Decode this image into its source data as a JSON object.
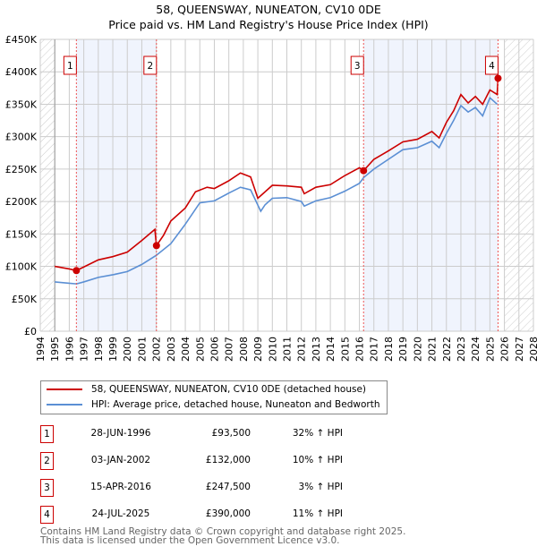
{
  "title": "58, QUEENSWAY, NUNEATON, CV10 0DE",
  "subtitle": "Price paid vs. HM Land Registry's House Price Index (HPI)",
  "chart_data": {
    "type": "line",
    "title": "58, QUEENSWAY, NUNEATON, CV10 0DE",
    "subtitle": "Price paid vs. HM Land Registry's House Price Index (HPI)",
    "xlim": [
      1994,
      2028
    ],
    "ylim": [
      0,
      450
    ],
    "x_ticks": [
      1994,
      1995,
      1996,
      1997,
      1998,
      1999,
      2000,
      2001,
      2002,
      2003,
      2004,
      2005,
      2006,
      2007,
      2008,
      2009,
      2010,
      2011,
      2012,
      2013,
      2014,
      2015,
      2016,
      2017,
      2018,
      2019,
      2020,
      2021,
      2022,
      2023,
      2024,
      2025,
      2026,
      2027,
      2028
    ],
    "y_ticks": [
      {
        "v": 0,
        "label": "£0"
      },
      {
        "v": 50,
        "label": "£50K"
      },
      {
        "v": 100,
        "label": "£100K"
      },
      {
        "v": 150,
        "label": "£150K"
      },
      {
        "v": 200,
        "label": "£200K"
      },
      {
        "v": 250,
        "label": "£250K"
      },
      {
        "v": 300,
        "label": "£300K"
      },
      {
        "v": 350,
        "label": "£350K"
      },
      {
        "v": 400,
        "label": "£400K"
      },
      {
        "v": 450,
        "label": "£450K"
      }
    ],
    "grid": true,
    "series": [
      {
        "name": "58, QUEENSWAY, NUNEATON, CV10 0DE (detached house)",
        "color": "#cc0000",
        "x": [
          1995,
          1996,
          1996.49,
          1997,
          1998,
          1999,
          2000,
          2001,
          2001.9,
          2002.01,
          2002.5,
          2003,
          2004,
          2004.7,
          2005.5,
          2006,
          2007,
          2007.8,
          2008.5,
          2009,
          2009.5,
          2010,
          2011,
          2012,
          2012.2,
          2013,
          2014,
          2015,
          2016,
          2016.29,
          2017,
          2018,
          2019,
          2020,
          2021,
          2021.5,
          2022,
          2022.5,
          2023,
          2023.5,
          2024,
          2024.5,
          2025,
          2025.5,
          2025.56
        ],
        "y": [
          100,
          96,
          93.5,
          99,
          110,
          115,
          122,
          140,
          157,
          132,
          148,
          170,
          190,
          215,
          222,
          220,
          232,
          244,
          238,
          205,
          215,
          225,
          224,
          222,
          212,
          222,
          226,
          240,
          252,
          247.5,
          265,
          278,
          292,
          296,
          308,
          298,
          322,
          340,
          365,
          352,
          362,
          350,
          372,
          365,
          390
        ]
      },
      {
        "name": "HPI: Average price, detached house, Nuneaton and Bedworth",
        "color": "#5b8fd4",
        "x": [
          1995,
          1996,
          1996.5,
          1997,
          1998,
          1999,
          2000,
          2001,
          2002,
          2003,
          2004,
          2005,
          2006,
          2007,
          2007.8,
          2008.5,
          2009.2,
          2009.5,
          2010,
          2011,
          2012,
          2012.2,
          2013,
          2014,
          2015,
          2016,
          2016.3,
          2017,
          2018,
          2019,
          2020,
          2021,
          2021.5,
          2022,
          2022.5,
          2023,
          2023.5,
          2024,
          2024.5,
          2025,
          2025.5
        ],
        "y": [
          76,
          74,
          73,
          76,
          83,
          87,
          92,
          103,
          117,
          135,
          165,
          198,
          201,
          213,
          222,
          218,
          185,
          195,
          205,
          206,
          200,
          193,
          201,
          206,
          216,
          228,
          237,
          250,
          265,
          280,
          283,
          293,
          283,
          305,
          325,
          348,
          338,
          345,
          332,
          360,
          350
        ]
      }
    ],
    "sales": [
      {
        "label": "1",
        "x": 1996.49,
        "y": 93.5
      },
      {
        "label": "2",
        "x": 2002.01,
        "y": 132
      },
      {
        "label": "3",
        "x": 2016.29,
        "y": 247.5
      },
      {
        "label": "4",
        "x": 2025.56,
        "y": 390
      }
    ],
    "shaded": [
      [
        1996.49,
        2002.01
      ],
      [
        2016.29,
        2025.56
      ]
    ],
    "hatched": [
      [
        1994,
        1995
      ],
      [
        2026,
        2028
      ]
    ]
  },
  "legend": [
    {
      "label": "58, QUEENSWAY, NUNEATON, CV10 0DE (detached house)",
      "color": "#cc0000"
    },
    {
      "label": "HPI: Average price, detached house, Nuneaton and Bedworth",
      "color": "#5b8fd4"
    }
  ],
  "table": [
    {
      "num": "1",
      "date": "28-JUN-1996",
      "price": "£93,500",
      "hpi": "32% ↑ HPI"
    },
    {
      "num": "2",
      "date": "03-JAN-2002",
      "price": "£132,000",
      "hpi": "10% ↑ HPI"
    },
    {
      "num": "3",
      "date": "15-APR-2016",
      "price": "£247,500",
      "hpi": "3% ↑ HPI"
    },
    {
      "num": "4",
      "date": "24-JUL-2025",
      "price": "£390,000",
      "hpi": "11% ↑ HPI"
    }
  ],
  "footer": [
    "Contains HM Land Registry data © Crown copyright and database right 2025.",
    "This data is licensed under the Open Government Licence v3.0."
  ]
}
